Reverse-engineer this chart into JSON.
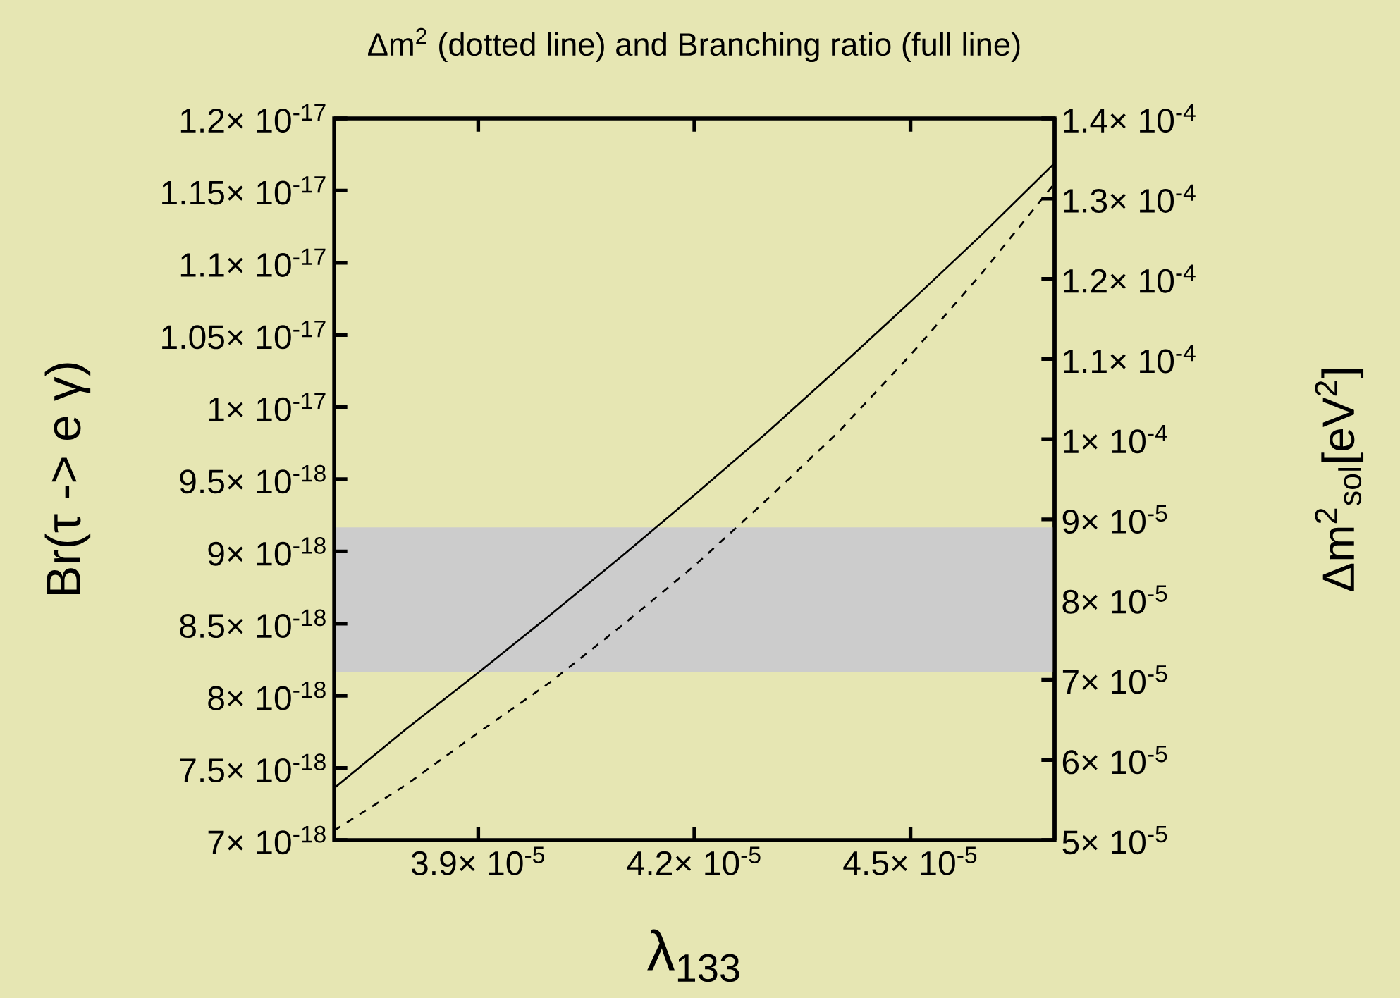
{
  "chart_data": {
    "type": "line",
    "title": "Δm$^{2}$ (dotted line) and Branching ratio (full line)",
    "xlabel": "λ$_{133}$",
    "ylabel": "Br(τ -> e γ)",
    "y2label": "Δm$^{2}$$_{sol}$[eV$^{2}$]",
    "x": [
      3.7e-05,
      3.8e-05,
      3.9e-05,
      4e-05,
      4.1e-05,
      4.2e-05,
      4.3e-05,
      4.4e-05,
      4.5e-05,
      4.6e-05,
      4.7e-05
    ],
    "series": [
      {
        "color": "#000000",
        "line_style": "solid",
        "values": [
          7.36e-18,
          7.77e-18,
          8.16e-18,
          8.56e-18,
          8.97e-18,
          9.39e-18,
          9.82e-18,
          1.027e-17,
          1.073e-17,
          1.12e-17,
          1.169e-17
        ]
      },
      {
        "color": "#000000",
        "line_style": "dashed",
        "axis": "y2",
        "values": [
          5.12e-05,
          5.69e-05,
          6.34e-05,
          6.97e-05,
          7.68e-05,
          8.42e-05,
          9.24e-05,
          0.0001009,
          0.0001105,
          0.0001208,
          0.0001319
        ]
      }
    ],
    "xlim": [
      3.7e-05,
      4.7e-05
    ],
    "xticks": [
      {
        "value": 3.9e-05,
        "label": "3.9× 10$^{-5}$"
      },
      {
        "value": 4.2e-05,
        "label": "4.2× 10$^{-5}$"
      },
      {
        "value": 4.5e-05,
        "label": "4.5× 10$^{-5}$"
      }
    ],
    "ylim": [
      7e-18,
      1.2e-17
    ],
    "yticks": [
      {
        "value": 7e-18,
        "label": "7× 10$^{-18}$"
      },
      {
        "value": 7.5e-18,
        "label": "7.5× 10$^{-18}$"
      },
      {
        "value": 8e-18,
        "label": "8× 10$^{-18}$"
      },
      {
        "value": 8.5e-18,
        "label": "8.5× 10$^{-18}$"
      },
      {
        "value": 9e-18,
        "label": "9× 10$^{-18}$"
      },
      {
        "value": 9.5e-18,
        "label": "9.5× 10$^{-18}$"
      },
      {
        "value": 1e-17,
        "label": "1× 10$^{-17}$"
      },
      {
        "value": 1.05e-17,
        "label": "1.05× 10$^{-17}$"
      },
      {
        "value": 1.1e-17,
        "label": "1.1× 10$^{-17}$"
      },
      {
        "value": 1.15e-17,
        "label": "1.15× 10$^{-17}$"
      },
      {
        "value": 1.2e-17,
        "label": "1.2× 10$^{-17}$"
      }
    ],
    "y2lim": [
      5e-05,
      0.00014
    ],
    "y2ticks": [
      {
        "value": 5e-05,
        "label": "5× 10$^{-5}$"
      },
      {
        "value": 6e-05,
        "label": "6× 10$^{-5}$"
      },
      {
        "value": 7e-05,
        "label": "7× 10$^{-5}$"
      },
      {
        "value": 8e-05,
        "label": "8× 10$^{-5}$"
      },
      {
        "value": 9e-05,
        "label": "9× 10$^{-5}$"
      },
      {
        "value": 0.0001,
        "label": "1× 10$^{-4}$"
      },
      {
        "value": 0.00011,
        "label": "1.1× 10$^{-4}$"
      },
      {
        "value": 0.00012,
        "label": "1.2× 10$^{-4}$"
      },
      {
        "value": 0.00013,
        "label": "1.3× 10$^{-4}$"
      },
      {
        "value": 0.00014,
        "label": "1.4× 10$^{-4}$"
      }
    ],
    "bands": [
      {
        "axis": "y2",
        "from": 7.1e-05,
        "to": 8.9e-05,
        "color": "#cccccc"
      }
    ]
  }
}
